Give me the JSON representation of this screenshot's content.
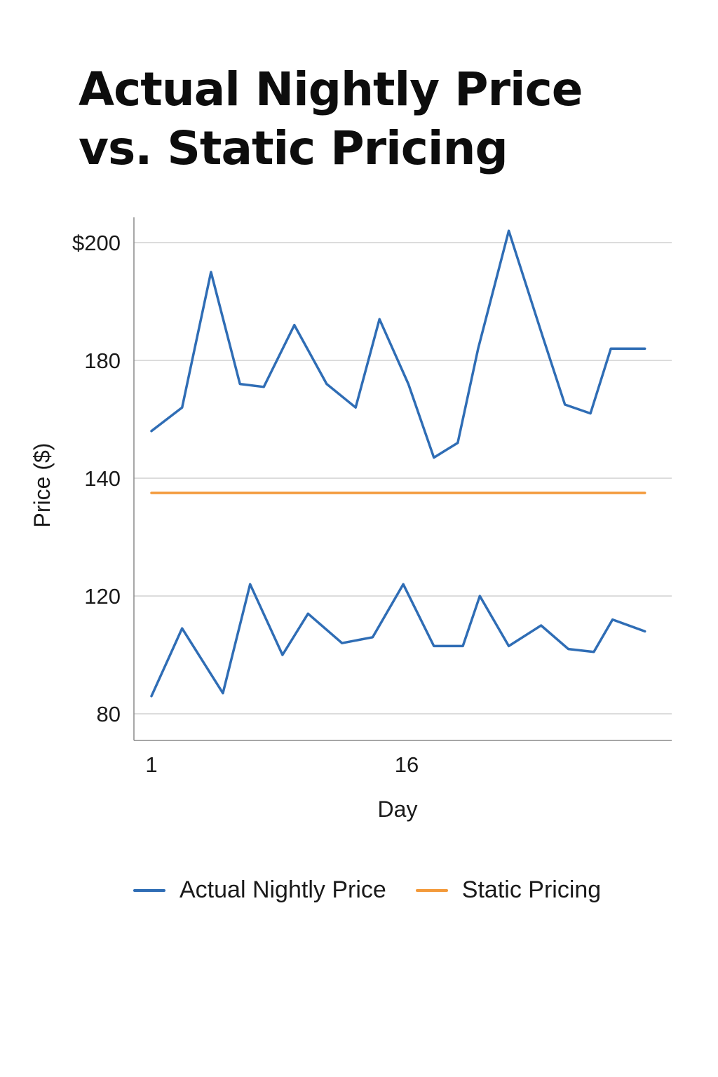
{
  "title_lines": [
    "Actual Nightly Price",
    "vs. Static Pricing"
  ],
  "chart_data": {
    "type": "line",
    "title": "Actual Nightly Price vs. Static Pricing",
    "xlabel": "Day",
    "ylabel": "Price ($)",
    "y_ticks": [
      {
        "value": 200,
        "label": "$200"
      },
      {
        "value": 180,
        "label": "180"
      },
      {
        "value": 140,
        "label": "140"
      },
      {
        "value": 120,
        "label": "120"
      },
      {
        "value": 80,
        "label": "80"
      }
    ],
    "x_ticks": [
      {
        "value": 1,
        "label": "1"
      },
      {
        "value": 16,
        "label": "16"
      }
    ],
    "grid": "horizontal",
    "legend_position": "bottom",
    "colors": {
      "actual": "#2f6db5",
      "static": "#f39a3a",
      "grid": "#d0d0d0",
      "axis": "#8a8a8a"
    },
    "series": [
      {
        "name": "Actual Nightly Price",
        "color": "#2f6db5",
        "legend": true,
        "points": [
          [
            1,
            156
          ],
          [
            2.8,
            164
          ],
          [
            4.5,
            195
          ],
          [
            6.2,
            172
          ],
          [
            7.6,
            171
          ],
          [
            9.4,
            186
          ],
          [
            11.3,
            172
          ],
          [
            13.0,
            164
          ],
          [
            14.4,
            187
          ],
          [
            16.1,
            172
          ],
          [
            17.6,
            147
          ],
          [
            19.0,
            152
          ],
          [
            20.2,
            182
          ],
          [
            22.0,
            202
          ],
          [
            24.0,
            184
          ],
          [
            25.3,
            165
          ],
          [
            26.8,
            162
          ],
          [
            28.0,
            182
          ],
          [
            30.0,
            182
          ]
        ]
      },
      {
        "name": "",
        "color": "#2f6db5",
        "legend": false,
        "points": [
          [
            1,
            86
          ],
          [
            2.8,
            109
          ],
          [
            5.2,
            87
          ],
          [
            6.8,
            122
          ],
          [
            8.7,
            100
          ],
          [
            10.2,
            114
          ],
          [
            12.2,
            104
          ],
          [
            14.0,
            106
          ],
          [
            15.8,
            122
          ],
          [
            17.6,
            103
          ],
          [
            19.3,
            103
          ],
          [
            20.3,
            120
          ],
          [
            22.0,
            103
          ],
          [
            23.9,
            110
          ],
          [
            25.5,
            102
          ],
          [
            27.0,
            101
          ],
          [
            28.1,
            112
          ],
          [
            30.0,
            108
          ]
        ]
      },
      {
        "name": "Static Pricing",
        "color": "#f39a3a",
        "legend": true,
        "points": [
          [
            1,
            137.5
          ],
          [
            30,
            137.5
          ]
        ]
      }
    ]
  },
  "legend": [
    {
      "label": "Actual Nightly Price",
      "color": "#2f6db5"
    },
    {
      "label": "Static Pricing",
      "color": "#f39a3a"
    }
  ]
}
